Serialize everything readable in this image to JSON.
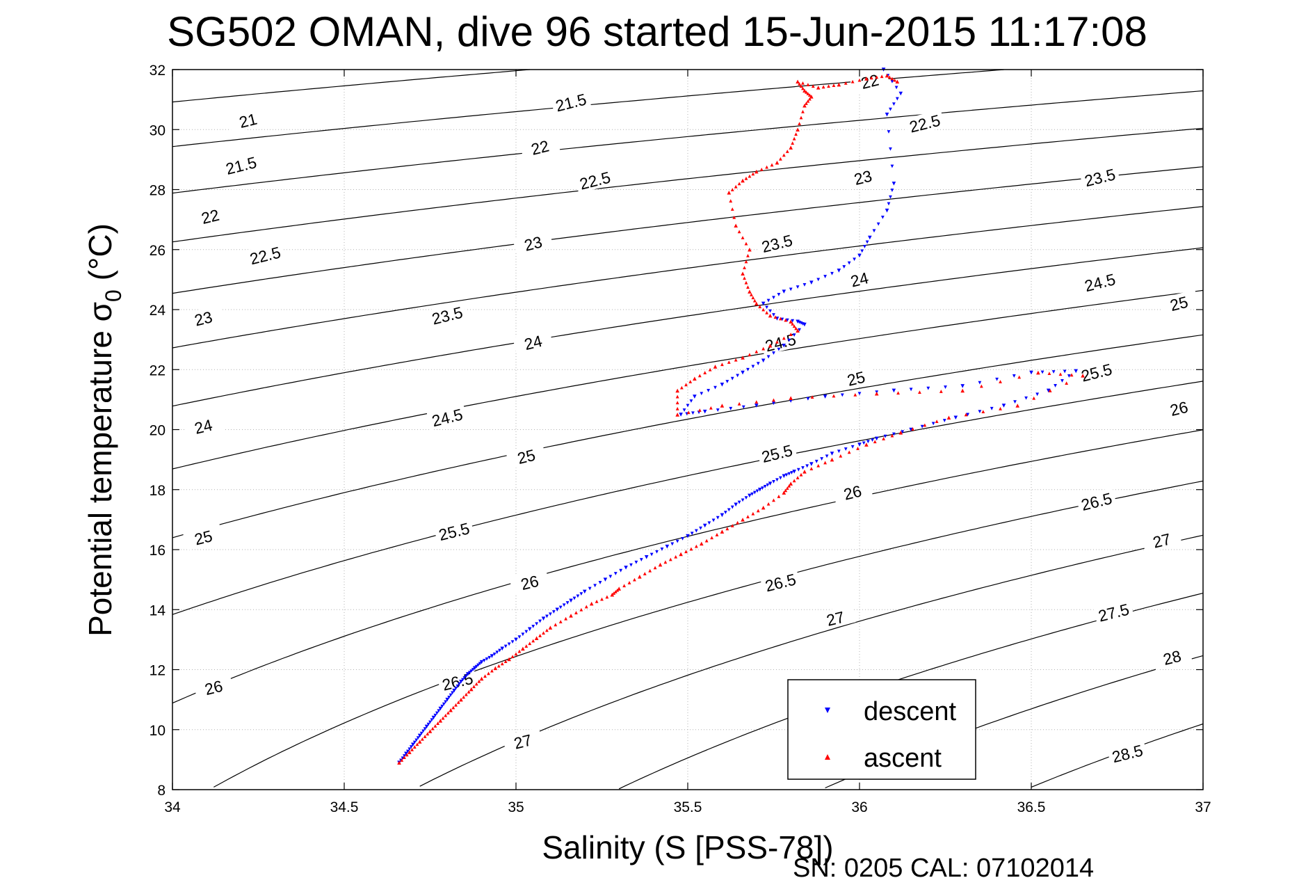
{
  "chart_data": {
    "type": "scatter",
    "title": "SG502 OMAN, dive 96 started 15-Jun-2015 11:17:08",
    "xlabel": "Salinity (S [PSS-78])",
    "ylabel": "Potential temperature σ0 (°C)",
    "ylabel_main": "Potential temperature σ",
    "ylabel_sub": "0",
    "ylabel_unit": " (°C)",
    "footer": "SN: 0205  CAL: 07102014",
    "xlim": [
      34,
      37
    ],
    "ylim": [
      8,
      32
    ],
    "xticks": [
      "34",
      "34.5",
      "35",
      "35.5",
      "36",
      "36.5",
      "37"
    ],
    "yticks": [
      "8",
      "10",
      "12",
      "14",
      "16",
      "18",
      "20",
      "22",
      "24",
      "26",
      "28",
      "30",
      "32"
    ],
    "grid": true,
    "legend_position": "bottom-right",
    "isopycnals": [
      "20.5",
      "21",
      "21.5",
      "22",
      "22.5",
      "23",
      "23.5",
      "24",
      "24.5",
      "25",
      "25.5",
      "26",
      "26.5",
      "27",
      "27.5",
      "28",
      "28.5"
    ],
    "contour_labels": [
      {
        "text": "21",
        "x": 34.22,
        "y": 30.3
      },
      {
        "text": "21.5",
        "x": 34.2,
        "y": 28.8
      },
      {
        "text": "22",
        "x": 34.11,
        "y": 27.1
      },
      {
        "text": "22.5",
        "x": 34.27,
        "y": 25.8
      },
      {
        "text": "23",
        "x": 34.09,
        "y": 23.7
      },
      {
        "text": "23.5",
        "x": 34.8,
        "y": 23.8
      },
      {
        "text": "24",
        "x": 34.09,
        "y": 20.1
      },
      {
        "text": "24.5",
        "x": 34.8,
        "y": 20.4
      },
      {
        "text": "25",
        "x": 34.09,
        "y": 16.4
      },
      {
        "text": "25.5",
        "x": 34.82,
        "y": 16.6
      },
      {
        "text": "26",
        "x": 34.12,
        "y": 11.4
      },
      {
        "text": "26.5",
        "x": 34.83,
        "y": 11.6
      },
      {
        "text": "27",
        "x": 35.02,
        "y": 9.6
      },
      {
        "text": "21.5",
        "x": 35.16,
        "y": 30.9
      },
      {
        "text": "22",
        "x": 35.07,
        "y": 29.4
      },
      {
        "text": "22.5",
        "x": 35.23,
        "y": 28.3
      },
      {
        "text": "23",
        "x": 35.05,
        "y": 26.2
      },
      {
        "text": "24",
        "x": 35.05,
        "y": 22.9
      },
      {
        "text": "25",
        "x": 35.03,
        "y": 19.1
      },
      {
        "text": "26",
        "x": 35.04,
        "y": 14.9
      },
      {
        "text": "22",
        "x": 36.03,
        "y": 31.6
      },
      {
        "text": "22.5",
        "x": 36.19,
        "y": 30.2
      },
      {
        "text": "23",
        "x": 36.01,
        "y": 28.4
      },
      {
        "text": "23.5",
        "x": 35.76,
        "y": 26.2
      },
      {
        "text": "24",
        "x": 36.0,
        "y": 25.0
      },
      {
        "text": "24.5",
        "x": 35.77,
        "y": 22.9
      },
      {
        "text": "25",
        "x": 35.99,
        "y": 21.7
      },
      {
        "text": "25.5",
        "x": 35.76,
        "y": 19.2
      },
      {
        "text": "26",
        "x": 35.98,
        "y": 17.9
      },
      {
        "text": "26.5",
        "x": 35.77,
        "y": 14.9
      },
      {
        "text": "27",
        "x": 35.93,
        "y": 13.7
      },
      {
        "text": "23.5",
        "x": 36.7,
        "y": 28.4
      },
      {
        "text": "24.5",
        "x": 36.7,
        "y": 24.9
      },
      {
        "text": "25",
        "x": 36.93,
        "y": 24.2
      },
      {
        "text": "25.5",
        "x": 36.69,
        "y": 21.9
      },
      {
        "text": "26",
        "x": 36.93,
        "y": 20.7
      },
      {
        "text": "26.5",
        "x": 36.69,
        "y": 17.6
      },
      {
        "text": "27",
        "x": 36.88,
        "y": 16.3
      },
      {
        "text": "27.5",
        "x": 36.74,
        "y": 13.9
      },
      {
        "text": "28",
        "x": 36.91,
        "y": 12.4
      },
      {
        "text": "28.5",
        "x": 36.78,
        "y": 9.2
      }
    ],
    "series": [
      {
        "name": "descent",
        "color": "#0000ff",
        "marker": "triangle-down",
        "x": [
          34.66,
          34.68,
          34.7,
          34.72,
          34.74,
          34.76,
          34.78,
          34.8,
          34.82,
          34.84,
          34.86,
          34.88,
          34.9,
          34.93,
          34.96,
          35.0,
          35.04,
          35.08,
          35.12,
          35.16,
          35.2,
          35.26,
          35.32,
          35.38,
          35.44,
          35.5,
          35.55,
          35.6,
          35.64,
          35.68,
          35.71,
          35.74,
          35.78,
          35.81,
          35.86,
          35.92,
          36.0,
          36.05,
          36.15,
          36.28,
          36.42,
          36.55,
          36.63,
          36.5,
          36.3,
          36.1,
          35.9,
          35.7,
          35.55,
          35.48,
          35.52,
          35.6,
          35.66,
          35.72,
          35.78,
          35.84,
          35.82,
          35.76,
          35.72,
          35.78,
          35.86,
          35.94,
          36.0,
          36.03,
          36.08,
          36.1,
          36.08,
          36.12,
          36.07
        ],
        "y": [
          8.9,
          9.2,
          9.5,
          9.8,
          10.1,
          10.4,
          10.7,
          11.0,
          11.3,
          11.6,
          11.85,
          12.05,
          12.25,
          12.45,
          12.7,
          13.0,
          13.35,
          13.7,
          14.0,
          14.3,
          14.6,
          15.0,
          15.4,
          15.75,
          16.1,
          16.45,
          16.8,
          17.15,
          17.5,
          17.8,
          18.0,
          18.2,
          18.45,
          18.6,
          18.85,
          19.2,
          19.5,
          19.7,
          20.0,
          20.4,
          20.8,
          21.3,
          21.95,
          21.9,
          21.45,
          21.3,
          21.1,
          20.8,
          20.6,
          20.5,
          21.1,
          21.5,
          21.9,
          22.3,
          22.8,
          23.5,
          23.6,
          23.7,
          24.2,
          24.6,
          24.9,
          25.3,
          25.8,
          26.4,
          27.3,
          28.2,
          30.5,
          31.2,
          32.0
        ]
      },
      {
        "name": "ascent",
        "color": "#ff0000",
        "marker": "triangle-up",
        "x": [
          34.66,
          34.69,
          34.72,
          34.75,
          34.78,
          34.81,
          34.84,
          34.87,
          34.9,
          34.94,
          34.98,
          35.02,
          35.06,
          35.1,
          35.16,
          35.22,
          35.28,
          35.3,
          35.36,
          35.42,
          35.48,
          35.54,
          35.6,
          35.66,
          35.72,
          35.78,
          35.8,
          35.84,
          35.92,
          36.02,
          36.12,
          36.26,
          36.46,
          36.65,
          36.52,
          36.3,
          36.05,
          35.8,
          35.6,
          35.47,
          35.47,
          35.52,
          35.58,
          35.66,
          35.74,
          35.82,
          35.8,
          35.74,
          35.7,
          35.68,
          35.66,
          35.68,
          35.64,
          35.62,
          35.66,
          35.7,
          35.76,
          35.8,
          35.82,
          35.84,
          35.86,
          35.84,
          35.82,
          35.88,
          35.94,
          36.02,
          36.08,
          36.11
        ],
        "y": [
          8.9,
          9.25,
          9.6,
          9.95,
          10.3,
          10.65,
          11.0,
          11.35,
          11.7,
          12.05,
          12.35,
          12.7,
          13.05,
          13.4,
          13.8,
          14.2,
          14.5,
          14.7,
          15.1,
          15.5,
          15.85,
          16.2,
          16.6,
          17.0,
          17.4,
          17.9,
          18.2,
          18.6,
          19.0,
          19.5,
          19.9,
          20.4,
          20.8,
          21.8,
          21.9,
          21.3,
          21.2,
          21.05,
          20.8,
          20.5,
          21.3,
          21.7,
          22.1,
          22.4,
          22.8,
          23.3,
          23.6,
          23.8,
          24.2,
          24.6,
          25.2,
          26.0,
          26.8,
          27.9,
          28.3,
          28.6,
          28.9,
          29.4,
          30.0,
          30.8,
          31.1,
          31.3,
          31.6,
          31.4,
          31.5,
          31.7,
          31.8,
          31.6
        ]
      }
    ]
  }
}
